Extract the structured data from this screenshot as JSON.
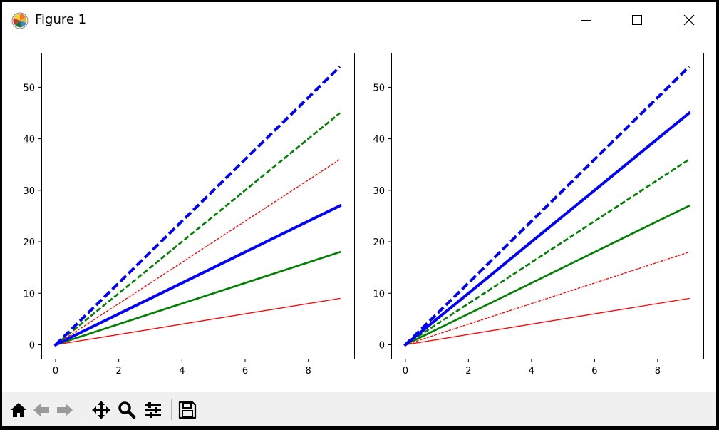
{
  "window": {
    "title": "Figure 1"
  },
  "titlebar_buttons": {
    "minimize": "minimize-icon",
    "maximize": "maximize-icon",
    "close": "close-icon"
  },
  "toolbar": {
    "buttons": [
      {
        "name": "home-button",
        "icon": "home-icon"
      },
      {
        "name": "back-button",
        "icon": "left-arrow-icon"
      },
      {
        "name": "forward-button",
        "icon": "right-arrow-icon"
      },
      {
        "name": "pan-button",
        "icon": "move-icon"
      },
      {
        "name": "zoom-button",
        "icon": "magnifier-icon"
      },
      {
        "name": "configure-subplots-button",
        "icon": "sliders-icon"
      },
      {
        "name": "save-button",
        "icon": "floppy-disk-icon"
      }
    ]
  },
  "chart_data": [
    {
      "type": "line",
      "xlim": [
        -0.45,
        9.45
      ],
      "ylim": [
        -2.7,
        56.7
      ],
      "xticks": [
        0,
        2,
        4,
        6,
        8
      ],
      "yticks": [
        0,
        10,
        20,
        30,
        40,
        50
      ],
      "x": [
        0,
        9
      ],
      "series": [
        {
          "color": "#ff0000",
          "style": "solid",
          "width": 1,
          "values": [
            0,
            9
          ]
        },
        {
          "color": "#008000",
          "style": "solid",
          "width": 2,
          "values": [
            0,
            18
          ]
        },
        {
          "color": "#0000ff",
          "style": "solid",
          "width": 3,
          "values": [
            0,
            27
          ]
        },
        {
          "color": "#ff0000",
          "style": "dashed",
          "width": 1,
          "values": [
            0,
            36
          ]
        },
        {
          "color": "#008000",
          "style": "dashed",
          "width": 2,
          "values": [
            0,
            45
          ]
        },
        {
          "color": "#0000ff",
          "style": "dashed",
          "width": 3,
          "values": [
            0,
            54
          ]
        }
      ]
    },
    {
      "type": "line",
      "xlim": [
        -0.45,
        9.45
      ],
      "ylim": [
        -2.7,
        56.7
      ],
      "xticks": [
        0,
        2,
        4,
        6,
        8
      ],
      "yticks": [
        0,
        10,
        20,
        30,
        40,
        50
      ],
      "x": [
        0,
        9
      ],
      "series": [
        {
          "color": "#ff0000",
          "style": "solid",
          "width": 1,
          "values": [
            0,
            9
          ]
        },
        {
          "color": "#ff0000",
          "style": "dashed",
          "width": 1,
          "values": [
            0,
            18
          ]
        },
        {
          "color": "#008000",
          "style": "solid",
          "width": 2,
          "values": [
            0,
            27
          ]
        },
        {
          "color": "#008000",
          "style": "dashed",
          "width": 2,
          "values": [
            0,
            36
          ]
        },
        {
          "color": "#0000ff",
          "style": "solid",
          "width": 3,
          "values": [
            0,
            45
          ]
        },
        {
          "color": "#0000ff",
          "style": "dashed",
          "width": 3,
          "values": [
            0,
            54
          ]
        }
      ]
    }
  ]
}
